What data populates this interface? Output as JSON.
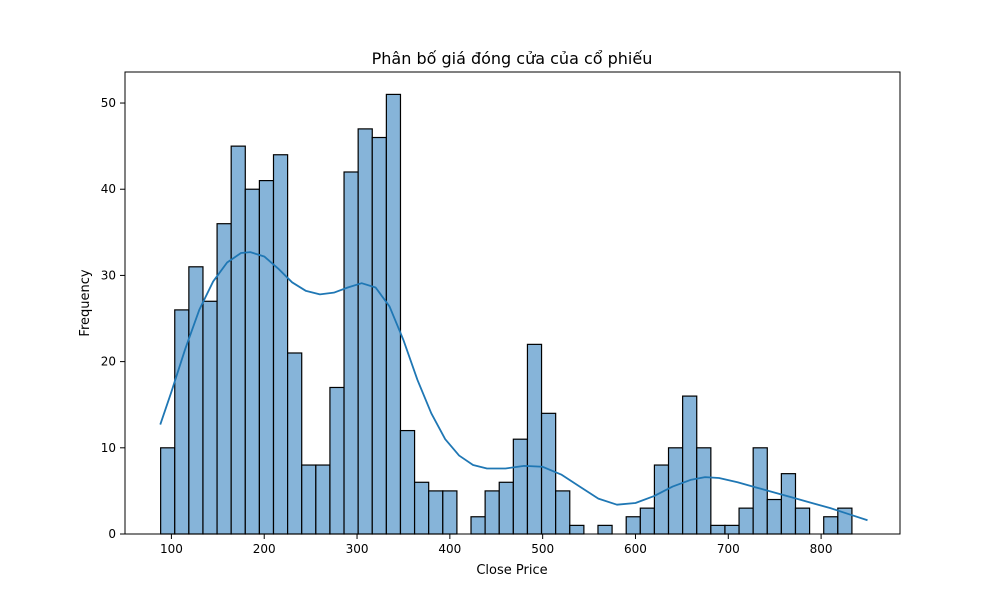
{
  "chart_data": {
    "type": "bar",
    "title": "Phân bố giá đóng cửa của cổ phiếu",
    "xlabel": "Close Price",
    "ylabel": "Frequency",
    "xlim": [
      50,
      885
    ],
    "ylim": [
      0,
      53.6
    ],
    "xticks": [
      100,
      200,
      300,
      400,
      500,
      600,
      700,
      800
    ],
    "yticks": [
      0,
      10,
      20,
      30,
      40,
      50
    ],
    "bin_start": 88.4,
    "bin_width": 15.2,
    "values": [
      10,
      26,
      31,
      27,
      36,
      45,
      40,
      41,
      44,
      21,
      8,
      8,
      17,
      42,
      47,
      46,
      51,
      12,
      6,
      5,
      5,
      0,
      2,
      5,
      6,
      11,
      22,
      14,
      5,
      1,
      0,
      1,
      0,
      2,
      3,
      8,
      10,
      16,
      10,
      1,
      1,
      3,
      10,
      4,
      7,
      3,
      0,
      2,
      3
    ],
    "kde": {
      "x": [
        88,
        100,
        115,
        130,
        145,
        160,
        175,
        185,
        200,
        215,
        230,
        245,
        260,
        275,
        290,
        305,
        320,
        335,
        350,
        365,
        380,
        395,
        410,
        425,
        440,
        460,
        480,
        500,
        520,
        540,
        560,
        580,
        600,
        620,
        640,
        660,
        675,
        690,
        710,
        730,
        750,
        770,
        790,
        810,
        830,
        850
      ],
      "y": [
        12.7,
        16.5,
        21.5,
        26.0,
        29.3,
        31.5,
        32.6,
        32.7,
        32.2,
        30.8,
        29.2,
        28.2,
        27.8,
        28.0,
        28.6,
        29.1,
        28.6,
        26.4,
        22.5,
        17.9,
        14.0,
        11.0,
        9.1,
        8.0,
        7.6,
        7.6,
        7.9,
        7.8,
        6.9,
        5.5,
        4.1,
        3.4,
        3.6,
        4.4,
        5.5,
        6.3,
        6.6,
        6.5,
        6.0,
        5.4,
        4.8,
        4.2,
        3.6,
        3.0,
        2.3,
        1.6
      ],
      "color": "#1f77b4"
    },
    "bar_color": "#86b4d9",
    "edge_color": "#000000",
    "legend": "none",
    "grid": false
  }
}
